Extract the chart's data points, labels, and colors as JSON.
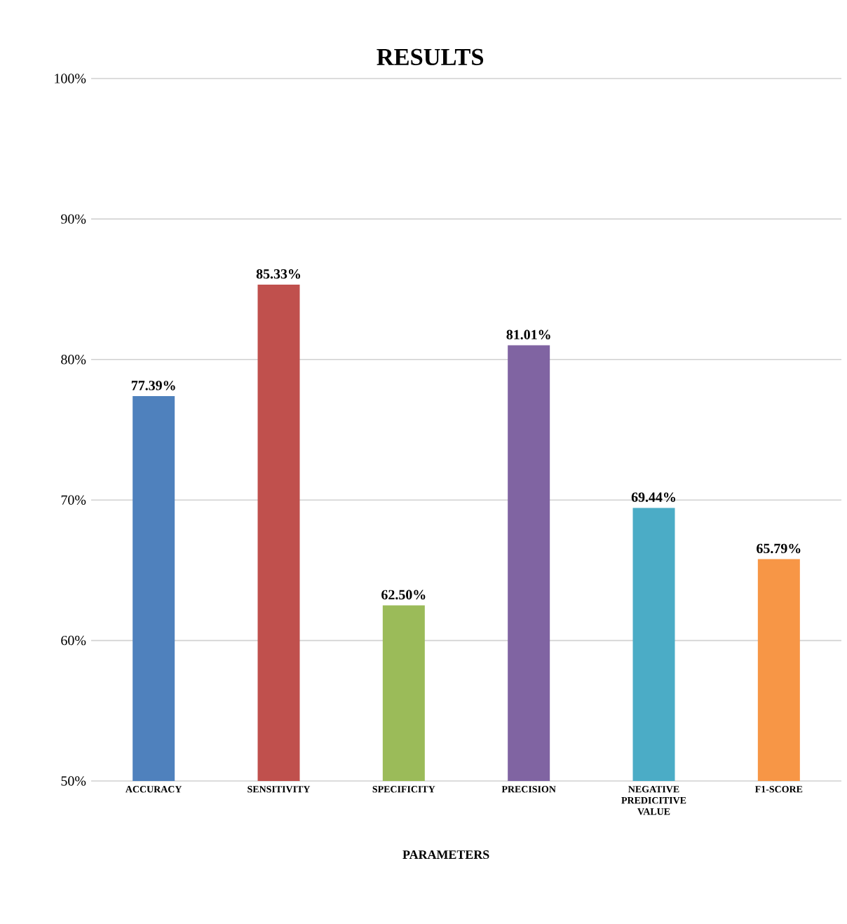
{
  "chart_data": {
    "type": "bar",
    "title": "RESULTS",
    "xlabel": "PARAMETERS",
    "categories": [
      "ACCURACY",
      "SENSITIVITY",
      "SPECIFICITY",
      "PRECISION",
      "NEGATIVE PREDICITIVE VALUE",
      "F1-SCORE"
    ],
    "values": [
      77.39,
      85.33,
      62.5,
      81.01,
      69.44,
      65.79
    ],
    "value_labels": [
      "77.39%",
      "85.33%",
      "62.50%",
      "81.01%",
      "69.44%",
      "65.79%"
    ],
    "colors": [
      "#4f81bd",
      "#c0504d",
      "#9bbb59",
      "#8064a2",
      "#4bacc6",
      "#f79646"
    ],
    "ylim": [
      50,
      100
    ],
    "yticks": [
      {
        "value": 50,
        "label": "50%"
      },
      {
        "value": 60,
        "label": "60%"
      },
      {
        "value": 70,
        "label": "70%"
      },
      {
        "value": 80,
        "label": "80%"
      },
      {
        "value": 90,
        "label": "90%"
      },
      {
        "value": 100,
        "label": "100%"
      }
    ],
    "grid": "y"
  }
}
